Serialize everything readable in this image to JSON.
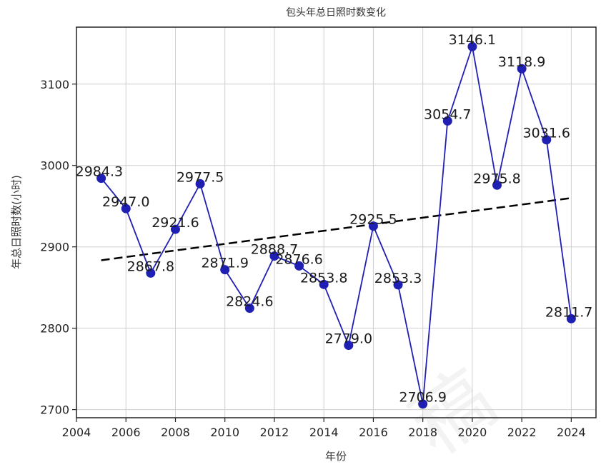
{
  "chart_data": {
    "type": "line",
    "title": "包头年总日照时数变化",
    "xlabel": "年份",
    "ylabel": "年总日照时数(小时)",
    "xlim": [
      2004,
      2025
    ],
    "ylim": [
      2690,
      3170
    ],
    "xticks": [
      2004,
      2006,
      2008,
      2010,
      2012,
      2014,
      2016,
      2018,
      2020,
      2022,
      2024
    ],
    "yticks": [
      2700,
      2800,
      2900,
      3000,
      3100
    ],
    "grid": true,
    "series": [
      {
        "x": [
          2005,
          2006,
          2007,
          2008,
          2009,
          2010,
          2011,
          2012,
          2013,
          2014,
          2015,
          2016,
          2017,
          2018,
          2019,
          2020,
          2021,
          2022,
          2023,
          2024
        ],
        "values": [
          2984.3,
          2947.0,
          2867.8,
          2921.6,
          2977.5,
          2871.9,
          2824.6,
          2888.7,
          2876.6,
          2853.8,
          2779.0,
          2925.5,
          2853.3,
          2706.9,
          3054.7,
          3146.1,
          2975.8,
          3118.9,
          3031.6,
          2811.7
        ],
        "labels": [
          "2984.3",
          "2947.0",
          "2867.8",
          "2921.6",
          "2977.5",
          "2871.9",
          "2824.6",
          "2888.7",
          "2876.6",
          "2853.8",
          "2779.0",
          "2925.5",
          "2853.3",
          "2706.9",
          "3054.7",
          "3146.1",
          "2975.8",
          "3118.9",
          "3031.6",
          "2811.7"
        ],
        "color": "#1f1fb4"
      }
    ],
    "trend_line": {
      "x": [
        2005,
        2024
      ],
      "y": [
        2883.5,
        2960.0
      ],
      "style": "dashed",
      "color": "#000000"
    }
  }
}
